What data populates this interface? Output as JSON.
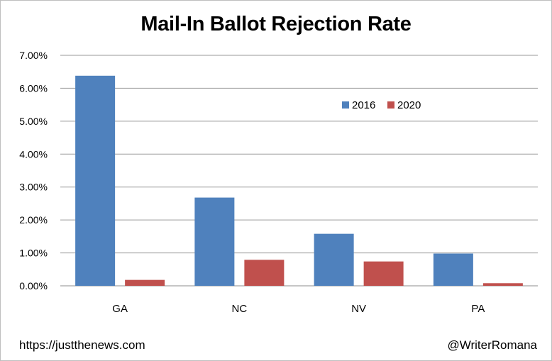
{
  "chart_data": {
    "type": "bar",
    "title": "Mail-In Ballot Rejection Rate",
    "categories": [
      "GA",
      "NC",
      "NV",
      "PA"
    ],
    "series": [
      {
        "name": "2016",
        "values": [
          6.38,
          2.68,
          1.58,
          0.98
        ],
        "color": "#4f81bd"
      },
      {
        "name": "2020",
        "values": [
          0.18,
          0.79,
          0.74,
          0.08
        ],
        "color": "#c0504d"
      }
    ],
    "yticks": [
      "0.00%",
      "1.00%",
      "2.00%",
      "3.00%",
      "4.00%",
      "5.00%",
      "6.00%",
      "7.00%"
    ],
    "ylim": [
      0,
      7
    ],
    "xlabel": "",
    "ylabel": "",
    "grid": true,
    "legend_position": "upper-right, inside plot"
  },
  "footer": {
    "source": "https://justthenews.com",
    "credit": "@WriterRomana"
  }
}
